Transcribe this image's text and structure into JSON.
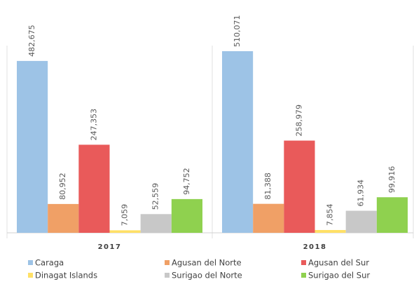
{
  "chart_data": {
    "type": "bar",
    "categories": [
      "2017",
      "2018"
    ],
    "series": [
      {
        "name": "Caraga",
        "color": "#9dc3e6",
        "values": [
          482675,
          510071
        ],
        "value_labels": [
          "482,675",
          "510,071"
        ]
      },
      {
        "name": "Agusan del Norte",
        "color": "#f0a066",
        "values": [
          80952,
          81388
        ],
        "value_labels": [
          "80,952",
          "81,388"
        ]
      },
      {
        "name": "Agusan del Sur",
        "color": "#e95a5a",
        "values": [
          247353,
          258979
        ],
        "value_labels": [
          "247,353",
          "258,979"
        ]
      },
      {
        "name": "Dinagat Islands",
        "color": "#ffe066",
        "values": [
          7059,
          7854
        ],
        "value_labels": [
          "7,059",
          "7,854"
        ]
      },
      {
        "name": "Surigao del Norte",
        "color": "#c8c8c8",
        "values": [
          52559,
          61934
        ],
        "value_labels": [
          "52,559",
          "61,934"
        ]
      },
      {
        "name": "Surigao del Sur",
        "color": "#8fd14f",
        "values": [
          94752,
          99916
        ],
        "value_labels": [
          "94,752",
          "99,916"
        ]
      }
    ]
  }
}
